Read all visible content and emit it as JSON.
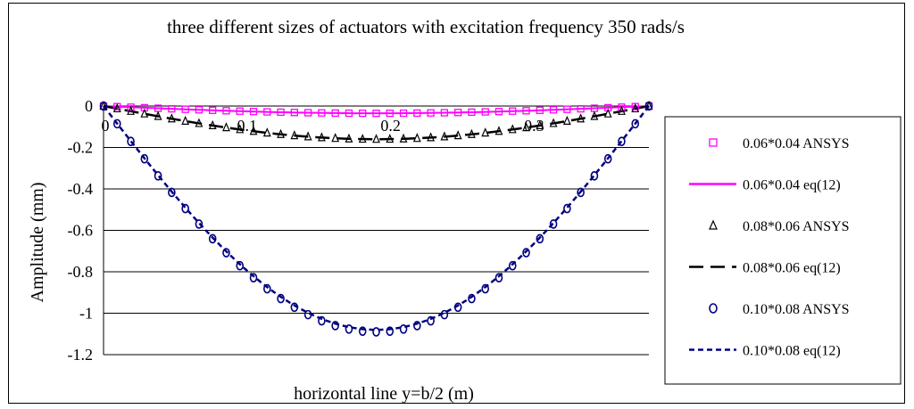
{
  "chart_data": {
    "type": "scatter",
    "title": "three different sizes of actuators with excitation frequency 350 rads/s",
    "xlabel": "horizontal line y=b/2 (m)",
    "ylabel": "Amplitude (mm)",
    "xlim": [
      0,
      0.38
    ],
    "ylim": [
      -1.2,
      0
    ],
    "x_ticks": [
      {
        "value": 0,
        "label": "0"
      },
      {
        "value": 0.1,
        "label": "0.1"
      },
      {
        "value": 0.2,
        "label": "0.2"
      },
      {
        "value": 0.3,
        "label": "0.3"
      }
    ],
    "y_ticks": [
      {
        "value": 0,
        "label": "0"
      },
      {
        "value": -0.2,
        "label": "-0.2"
      },
      {
        "value": -0.4,
        "label": "-0.4"
      },
      {
        "value": -0.6,
        "label": "-0.6"
      },
      {
        "value": -0.8,
        "label": "-0.8"
      },
      {
        "value": -1,
        "label": "-1"
      },
      {
        "value": -1.2,
        "label": "-1.2"
      }
    ],
    "grid": "horizontal",
    "legend_position": "right",
    "series": [
      {
        "name": "0.06*0.04 ANSYS",
        "marker": "square",
        "color": "#ff00ff",
        "kind": "markers",
        "span": 0.38,
        "amplitude": 0.035,
        "n": 40
      },
      {
        "name": "0.06*0.04 eq(12)",
        "color": "#ff00ff",
        "kind": "line",
        "dash": "solid",
        "span": 0.38,
        "amplitude": 0.035
      },
      {
        "name": "0.08*0.06 ANSYS",
        "marker": "triangle",
        "color": "#000000",
        "kind": "markers",
        "span": 0.38,
        "amplitude": 0.16,
        "n": 40
      },
      {
        "name": "0.08*0.06 eq(12)",
        "color": "#000000",
        "kind": "line",
        "dash": "longdash",
        "span": 0.38,
        "amplitude": 0.16
      },
      {
        "name": "0.10*0.08 ANSYS",
        "marker": "circle",
        "color": "#000080",
        "kind": "markers",
        "span": 0.38,
        "amplitude": 1.09,
        "n": 40
      },
      {
        "name": "0.10*0.08 eq(12)",
        "color": "#000080",
        "kind": "line",
        "dash": "shortdash",
        "span": 0.38,
        "amplitude": 1.08
      }
    ]
  }
}
